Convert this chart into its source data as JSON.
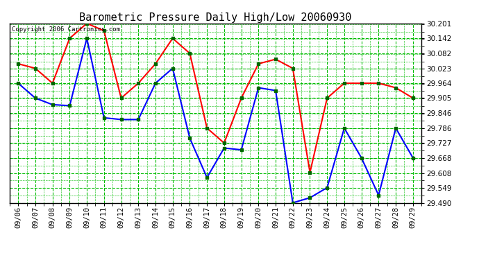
{
  "title": "Barometric Pressure Daily High/Low 20060930",
  "copyright": "Copyright 2006 Cartronics.com",
  "x_labels": [
    "09/06",
    "09/07",
    "09/08",
    "09/09",
    "09/10",
    "09/11",
    "09/12",
    "09/13",
    "09/14",
    "09/15",
    "09/16",
    "09/17",
    "09/18",
    "09/19",
    "09/20",
    "09/21",
    "09/22",
    "09/23",
    "09/24",
    "09/25",
    "09/26",
    "09/27",
    "09/28",
    "09/29"
  ],
  "high_values": [
    30.041,
    30.023,
    29.964,
    30.142,
    30.201,
    30.172,
    29.905,
    29.964,
    30.041,
    30.142,
    30.082,
    29.786,
    29.727,
    29.905,
    30.041,
    30.059,
    30.023,
    29.61,
    29.905,
    29.964,
    29.964,
    29.964,
    29.946,
    29.905
  ],
  "low_values": [
    29.964,
    29.905,
    29.879,
    29.875,
    30.142,
    29.827,
    29.82,
    29.82,
    29.964,
    30.023,
    29.746,
    29.59,
    29.707,
    29.7,
    29.946,
    29.935,
    29.49,
    29.51,
    29.55,
    29.786,
    29.668,
    29.52,
    29.786,
    29.668
  ],
  "ylim_min": 29.49,
  "ylim_max": 30.201,
  "yticks": [
    30.201,
    30.142,
    30.082,
    30.023,
    29.964,
    29.905,
    29.846,
    29.786,
    29.727,
    29.668,
    29.608,
    29.549,
    29.49
  ],
  "high_color": "#ff0000",
  "low_color": "#0000ff",
  "marker_color": "#006600",
  "bg_color": "#ffffff",
  "plot_bg_color": "#ffffff",
  "grid_color": "#00bb00",
  "title_fontsize": 11,
  "copyright_fontsize": 6.5,
  "tick_fontsize": 7.5,
  "ytick_fontsize": 7.5
}
